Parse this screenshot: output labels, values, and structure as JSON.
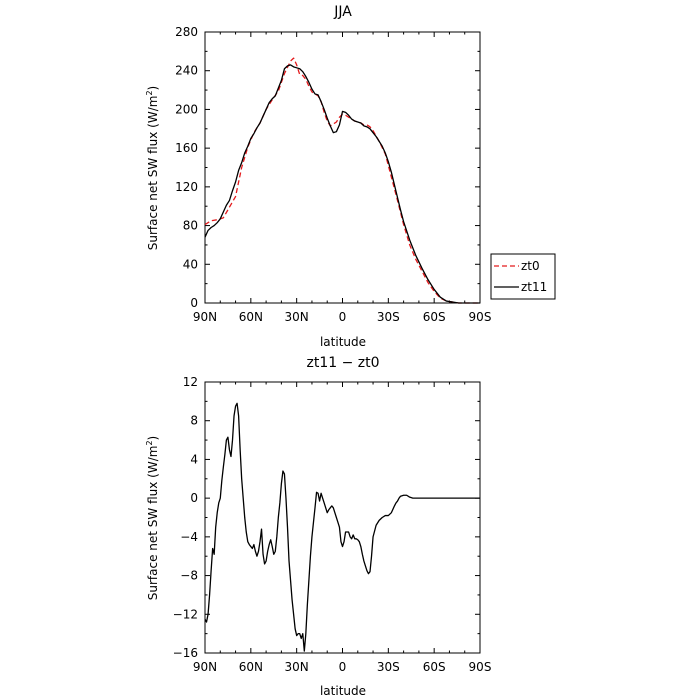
{
  "chart_data": [
    {
      "type": "line",
      "title": "JJA",
      "xlabel": "latitude",
      "ylabel": "Surface net SW flux (W/m²)",
      "ylabel_base": "Surface net SW flux (W/m",
      "ylabel_sup": "2",
      "ylabel_end": ")",
      "xlim": [
        90,
        -90
      ],
      "ylim": [
        0,
        280
      ],
      "xticks": [
        90,
        60,
        30,
        0,
        -30,
        -60,
        -90
      ],
      "xtick_labels": [
        "90N",
        "60N",
        "30N",
        "0",
        "30S",
        "60S",
        "90S"
      ],
      "yticks": [
        0,
        40,
        80,
        120,
        160,
        200,
        240,
        280
      ],
      "ytick_labels": [
        "0",
        "40",
        "80",
        "120",
        "160",
        "200",
        "240",
        "280"
      ],
      "legend_position": "right",
      "series": [
        {
          "name": "zt0",
          "color": "#e41a1c",
          "dash": "dashed",
          "x": [
            90,
            86,
            82,
            78,
            74,
            70,
            66,
            62,
            58,
            54,
            50,
            46,
            42,
            38,
            34,
            32,
            30,
            28,
            26,
            24,
            22,
            20,
            18,
            16,
            14,
            12,
            10,
            8,
            6,
            4,
            2,
            0,
            -2,
            -4,
            -6,
            -8,
            -10,
            -12,
            -14,
            -16,
            -18,
            -20,
            -24,
            -28,
            -32,
            -36,
            -40,
            -44,
            -48,
            -52,
            -56,
            -60,
            -64,
            -68,
            -72,
            -76,
            -80,
            -84,
            -88,
            -90
          ],
          "y": [
            81,
            85,
            86,
            88,
            99,
            110,
            140,
            161,
            176,
            186,
            200,
            210,
            219,
            237,
            250,
            253,
            246,
            236,
            235,
            231,
            224,
            218,
            216,
            214,
            208,
            197,
            188,
            183,
            185,
            187,
            192,
            195,
            194,
            192,
            190,
            188,
            187,
            186,
            184,
            184,
            182,
            178,
            167,
            154,
            130,
            106,
            81,
            60,
            45,
            33,
            21,
            12,
            5,
            2,
            1,
            0,
            0,
            0,
            0,
            0
          ]
        },
        {
          "name": "zt11",
          "color": "#000000",
          "dash": "solid",
          "x": [
            90,
            88,
            86,
            84,
            82,
            80,
            78,
            76,
            74,
            72,
            70,
            68,
            66,
            64,
            62,
            60,
            58,
            56,
            54,
            52,
            50,
            48,
            46,
            44,
            42,
            40,
            38,
            36,
            34,
            32,
            30,
            28,
            26,
            24,
            22,
            20,
            18,
            16,
            14,
            12,
            10,
            8,
            6,
            4,
            2,
            0,
            -2,
            -4,
            -6,
            -8,
            -10,
            -12,
            -14,
            -16,
            -18,
            -20,
            -22,
            -24,
            -26,
            -28,
            -30,
            -32,
            -34,
            -36,
            -38,
            -40,
            -44,
            -48,
            -52,
            -56,
            -60,
            -64,
            -68,
            -72,
            -76,
            -80,
            -84,
            -88,
            -90
          ],
          "y": [
            68,
            75,
            78,
            80,
            83,
            87,
            94,
            101,
            106,
            116,
            125,
            137,
            145,
            155,
            162,
            170,
            175,
            181,
            186,
            193,
            200,
            207,
            211,
            214,
            222,
            230,
            242,
            245,
            246,
            244,
            243,
            242,
            239,
            234,
            228,
            221,
            216,
            215,
            208,
            200,
            191,
            183,
            176,
            177,
            184,
            198,
            197,
            194,
            190,
            188,
            187,
            186,
            183,
            182,
            180,
            176,
            172,
            167,
            162,
            155,
            146,
            135,
            122,
            109,
            96,
            84,
            65,
            49,
            36,
            24,
            14,
            6,
            2,
            1,
            0,
            0,
            0,
            0,
            0
          ]
        }
      ]
    },
    {
      "type": "line",
      "title": "zt11 − zt0",
      "xlabel": "latitude",
      "ylabel": "Surface net SW flux (W/m²)",
      "ylabel_base": "Surface net SW flux (W/m",
      "ylabel_sup": "2",
      "ylabel_end": ")",
      "xlim": [
        90,
        -90
      ],
      "ylim": [
        -16,
        12
      ],
      "xticks": [
        90,
        60,
        30,
        0,
        -30,
        -60,
        -90
      ],
      "xtick_labels": [
        "90N",
        "60N",
        "30N",
        "0",
        "30S",
        "60S",
        "90S"
      ],
      "yticks": [
        -16,
        -12,
        -8,
        -4,
        0,
        4,
        8,
        12
      ],
      "ytick_labels": [
        "−16",
        "−12",
        "−8",
        "−4",
        "0",
        "4",
        "8",
        "12"
      ],
      "series": [
        {
          "name": "",
          "color": "#000000",
          "dash": "solid",
          "x": [
            90,
            89,
            88,
            87,
            86,
            85,
            84,
            83,
            82,
            81,
            80,
            79,
            78,
            77,
            76,
            75,
            74,
            73,
            72,
            71,
            70,
            69,
            68,
            67,
            66,
            65,
            64,
            63,
            62,
            61,
            60,
            59,
            58,
            57,
            56,
            55,
            54,
            53,
            52,
            51,
            50,
            49,
            48,
            47,
            46,
            45,
            44,
            43,
            42,
            41,
            40,
            39,
            38,
            37,
            36,
            35,
            34,
            33,
            32,
            31,
            30,
            29,
            28,
            27,
            26,
            25,
            24,
            23,
            22,
            21,
            20,
            19,
            18,
            17,
            16,
            15,
            14,
            13,
            12,
            11,
            10,
            9,
            8,
            7,
            6,
            5,
            4,
            3,
            2,
            1,
            0,
            -1,
            -2,
            -3,
            -4,
            -5,
            -6,
            -7,
            -8,
            -9,
            -10,
            -11,
            -12,
            -13,
            -14,
            -15,
            -16,
            -17,
            -18,
            -19,
            -20,
            -22,
            -24,
            -26,
            -28,
            -30,
            -32,
            -34,
            -35,
            -36,
            -37,
            -38,
            -40,
            -42,
            -44,
            -46,
            -48,
            -50,
            -52,
            -54,
            -56,
            -58,
            -60,
            -62,
            -64,
            -66,
            -68,
            -70,
            -72,
            -74,
            -76,
            -78,
            -80,
            -82,
            -84,
            -86,
            -88,
            -90
          ],
          "y": [
            -12.5,
            -12.8,
            -12.0,
            -10.0,
            -7.5,
            -5.2,
            -5.8,
            -3.0,
            -1.5,
            -0.5,
            0.0,
            1.8,
            3.2,
            4.5,
            6.0,
            6.3,
            5.0,
            4.3,
            6.0,
            8.5,
            9.5,
            9.8,
            8.5,
            5.0,
            2.0,
            0.0,
            -2.0,
            -3.5,
            -4.5,
            -4.8,
            -5.0,
            -5.2,
            -4.8,
            -5.5,
            -6.0,
            -5.5,
            -4.5,
            -3.2,
            -5.8,
            -6.8,
            -6.5,
            -5.5,
            -4.8,
            -4.3,
            -5.0,
            -5.8,
            -5.5,
            -4.0,
            -2.0,
            -0.5,
            1.5,
            2.8,
            2.5,
            0.0,
            -3.0,
            -6.5,
            -8.5,
            -10.5,
            -12.0,
            -13.5,
            -14.2,
            -14.0,
            -14.0,
            -14.5,
            -14.0,
            -15.8,
            -14.0,
            -11.0,
            -8.5,
            -6.0,
            -4.0,
            -2.5,
            -1.0,
            0.6,
            0.5,
            -0.3,
            0.5,
            0.0,
            -0.5,
            -1.0,
            -1.5,
            -1.2,
            -1.0,
            -0.8,
            -1.0,
            -1.5,
            -2.0,
            -2.5,
            -3.0,
            -4.5,
            -5.0,
            -4.5,
            -3.5,
            -3.5,
            -3.5,
            -4.0,
            -4.2,
            -3.8,
            -4.2,
            -4.2,
            -4.3,
            -4.5,
            -5.0,
            -5.8,
            -6.5,
            -7.0,
            -7.5,
            -7.8,
            -7.6,
            -6.0,
            -4.0,
            -2.8,
            -2.3,
            -2.0,
            -1.8,
            -1.8,
            -1.5,
            -0.8,
            -0.5,
            -0.3,
            0.0,
            0.2,
            0.3,
            0.3,
            0.1,
            0.0,
            0.0,
            0.0,
            0.0,
            0.0,
            0.0,
            0.0,
            0.0,
            0.0,
            0.0,
            0.0,
            0.0,
            0.0,
            0.0,
            0.0,
            0.0,
            0.0,
            0.0,
            0.0,
            0.0,
            0.0,
            0.0,
            0.0
          ]
        }
      ]
    }
  ]
}
